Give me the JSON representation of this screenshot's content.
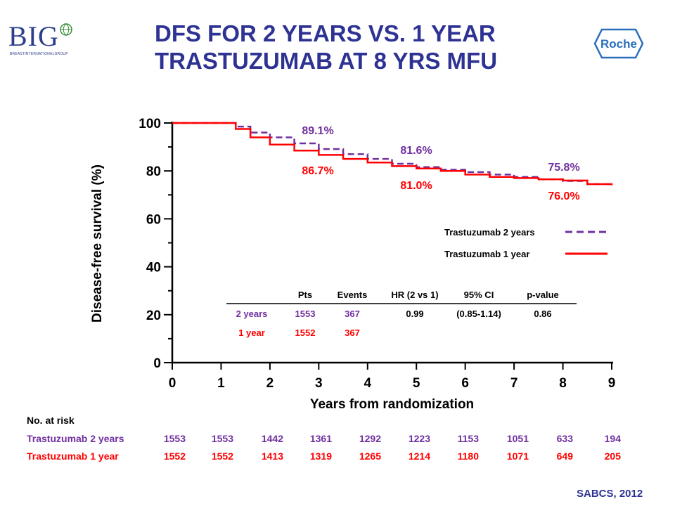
{
  "header": {
    "title_line1": "DFS FOR 2 YEARS VS. 1 YEAR",
    "title_line2": "TRASTUZUMAB AT 8 YRS MFU",
    "logo_left_text": "BIG",
    "logo_left_subtext": "BREASTINTERNATIONALGROUP",
    "logo_right_text": "Roche"
  },
  "colors": {
    "two_year": "#7030a0",
    "one_year": "#ff0000",
    "title": "#2e3393",
    "axis": "#000000"
  },
  "chart_data": {
    "type": "line",
    "xlabel": "Years from randomization",
    "ylabel": "Disease-free survival (%)",
    "xlim": [
      0,
      9
    ],
    "ylim": [
      0,
      100
    ],
    "x_ticks": [
      "0",
      "1",
      "2",
      "3",
      "4",
      "5",
      "6",
      "7",
      "8",
      "9"
    ],
    "y_ticks": [
      "0",
      "20",
      "40",
      "60",
      "80",
      "100"
    ],
    "series": [
      {
        "name": "Trastuzumab 2 years",
        "style": "dashed",
        "color": "#7030a0",
        "points": [
          [
            0,
            100
          ],
          [
            1,
            100
          ],
          [
            1.3,
            98.5
          ],
          [
            1.6,
            96
          ],
          [
            2,
            94
          ],
          [
            2.5,
            91.5
          ],
          [
            3,
            89.1
          ],
          [
            3.5,
            87
          ],
          [
            4,
            85
          ],
          [
            4.5,
            83
          ],
          [
            5,
            81.6
          ],
          [
            5.5,
            80.5
          ],
          [
            6,
            79.5
          ],
          [
            6.5,
            78.5
          ],
          [
            7,
            77.5
          ],
          [
            7.5,
            76.5
          ],
          [
            8,
            75.8
          ],
          [
            8.5,
            74.5
          ],
          [
            9,
            74
          ]
        ]
      },
      {
        "name": "Trastuzumab 1 year",
        "style": "solid",
        "color": "#ff0000",
        "points": [
          [
            0,
            100
          ],
          [
            1,
            100
          ],
          [
            1.3,
            97.5
          ],
          [
            1.6,
            94
          ],
          [
            2,
            91
          ],
          [
            2.5,
            88.5
          ],
          [
            3,
            86.7
          ],
          [
            3.5,
            85
          ],
          [
            4,
            83.5
          ],
          [
            4.5,
            82
          ],
          [
            5,
            81
          ],
          [
            5.5,
            80
          ],
          [
            6,
            78.5
          ],
          [
            6.5,
            77.5
          ],
          [
            7,
            77
          ],
          [
            7.5,
            76.5
          ],
          [
            8,
            76
          ],
          [
            8.5,
            74.5
          ],
          [
            9,
            74
          ]
        ]
      }
    ],
    "annotations": [
      {
        "text": "89.1%",
        "series": "Trastuzumab 2 years",
        "x": 3,
        "y": 89.1
      },
      {
        "text": "86.7%",
        "series": "Trastuzumab 1 year",
        "x": 3,
        "y": 86.7
      },
      {
        "text": "81.6%",
        "series": "Trastuzumab 2 years",
        "x": 5,
        "y": 81.6
      },
      {
        "text": "81.0%",
        "series": "Trastuzumab 1 year",
        "x": 5,
        "y": 81.0
      },
      {
        "text": "75.8%",
        "series": "Trastuzumab 2 years",
        "x": 8,
        "y": 75.8
      },
      {
        "text": "76.0%",
        "series": "Trastuzumab 1 year",
        "x": 8,
        "y": 76.0
      }
    ],
    "legend": {
      "placement": "right-middle",
      "entries": [
        "Trastuzumab 2 years",
        "Trastuzumab 1 year"
      ]
    },
    "stats_table": {
      "headers": [
        "",
        "Pts",
        "Events",
        "HR (2 vs 1)",
        "95% CI",
        "p-value"
      ],
      "rows": [
        [
          "2 years",
          "1553",
          "367",
          "0.99",
          "(0.85-1.14)",
          "0.86"
        ],
        [
          "1 year",
          "1552",
          "367",
          "",
          "",
          ""
        ]
      ]
    },
    "at_risk": {
      "title": "No. at risk",
      "rows": [
        {
          "label": "Trastuzumab 2 years",
          "values": [
            "1553",
            "1553",
            "1442",
            "1361",
            "1292",
            "1223",
            "1153",
            "1051",
            "633",
            "194"
          ]
        },
        {
          "label": "Trastuzumab 1 year",
          "values": [
            "1552",
            "1552",
            "1413",
            "1319",
            "1265",
            "1214",
            "1180",
            "1071",
            "649",
            "205"
          ]
        }
      ]
    }
  },
  "footer": {
    "text": "SABCS, 2012"
  }
}
